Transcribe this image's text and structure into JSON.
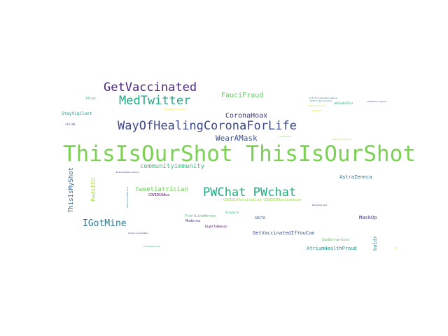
{
  "words": [
    {
      "text": "ThisIsOurShot ThisIsOurShot",
      "color": "#7ad151"
    },
    {
      "text": "WayOfHealingCoronaForLife",
      "color": "#3e4989"
    },
    {
      "text": "PWChat PWchat",
      "color": "#25ab82"
    },
    {
      "text": "MedTwitter",
      "color": "#22a884"
    },
    {
      "text": "GetVaccinated",
      "color": "#482878"
    },
    {
      "text": "IGotMine",
      "color": "#2a788e"
    },
    {
      "text": "WearAMask",
      "color": "#3b518b"
    },
    {
      "text": "FauciFraud",
      "color": "#5ec962"
    },
    {
      "text": "CoronaHoax",
      "color": "#46327e"
    },
    {
      "text": "communityimmunity",
      "color": "#35b779"
    },
    {
      "text": "tweetiatrician",
      "color": "#6ccd5a"
    },
    {
      "text": "ThisIsMyShot",
      "color": "#31688e"
    },
    {
      "text": "PedsICU",
      "color": "#a0da39"
    },
    {
      "text": "AstraZeneca",
      "color": "#2c728e"
    },
    {
      "text": "MaskUp",
      "color": "#443983"
    },
    {
      "text": "holdr",
      "color": "#26828e"
    },
    {
      "text": "GetVaccinatedIfYouCan",
      "color": "#3b528b"
    },
    {
      "text": "AtriumHealthProud",
      "color": "#21918c"
    },
    {
      "text": "StayVigilant",
      "color": "#1f9e89"
    },
    {
      "text": "COVID19Aus",
      "color": "#440154"
    },
    {
      "text": "FrontLineHeroes",
      "color": "#4ac16d"
    },
    {
      "text": "Moderna",
      "color": "#433e85"
    },
    {
      "text": "SB276",
      "color": "#365c8d"
    },
    {
      "text": "SanBernardino",
      "color": "#5ec962"
    },
    {
      "text": "COVID19Vaccination COVID19Vaccination",
      "color": "#95d840"
    },
    {
      "text": "Pfizer",
      "color": "#1fa187"
    },
    {
      "text": "ziklab",
      "color": "#3f4788"
    },
    {
      "text": "ImOnNaNaVaccinated",
      "color": "#fde725"
    },
    {
      "text": "BlackandVaccinated",
      "color": "#46307e"
    },
    {
      "text": "SmallVoiceMatters",
      "color": "#2e6f8e"
    },
    {
      "text": "StaySafe",
      "color": "#38b977"
    },
    {
      "text": "RightToRemain",
      "color": "#450457"
    },
    {
      "text": "GetVaccinatedNow",
      "color": "#3e4a89"
    },
    {
      "text": "PfizerVaccine",
      "color": "#1e9b8a"
    },
    {
      "text": "ArtificialIntelligence",
      "color": "#2d718e"
    },
    {
      "text": "WeCanDoThis",
      "color": "#22a785"
    },
    {
      "text": "COVIDVaccination",
      "color": "#3d4d8a"
    },
    {
      "text": "COVID19",
      "color": "#d8e219"
    },
    {
      "text": "NewVaccinations",
      "color": "#b5de2b"
    },
    {
      "text": "TeleHealth",
      "color": "#7fd34e"
    },
    {
      "text": "ImFullyVaccinated",
      "color": "#2a768e"
    },
    {
      "text": "DeltaVariant",
      "color": "#481f70"
    },
    {
      "text": "SchoolVaccines",
      "color": "#bddf26"
    },
    {
      "text": "hs",
      "color": "#fde725"
    }
  ]
}
